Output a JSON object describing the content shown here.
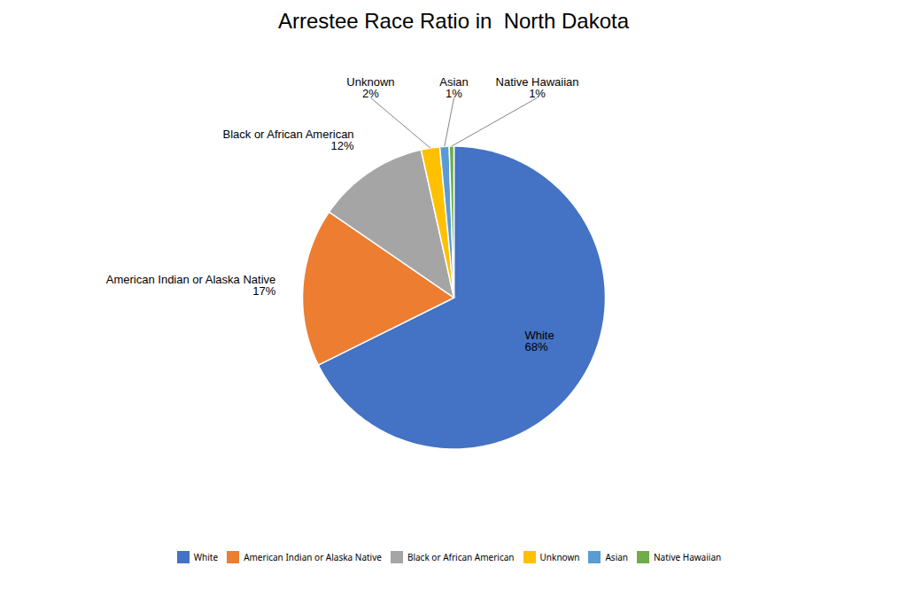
{
  "chart_data": {
    "type": "pie",
    "title": "Arrestee Race Ratio in  North Dakota",
    "categories": [
      "White",
      "American Indian or Alaska Native",
      "Black or African American",
      "Unknown",
      "Asian",
      "Native Hawaiian"
    ],
    "values": [
      68,
      17,
      12,
      2,
      1,
      0.5
    ],
    "value_labels": [
      "68%",
      "17%",
      "12%",
      "2%",
      "1%",
      "1%"
    ],
    "colors": [
      "#4472C4",
      "#ED7D31",
      "#A5A5A5",
      "#FFC000",
      "#5B9BD5",
      "#70AD47"
    ],
    "data_labels": true,
    "legend": "bottom"
  }
}
